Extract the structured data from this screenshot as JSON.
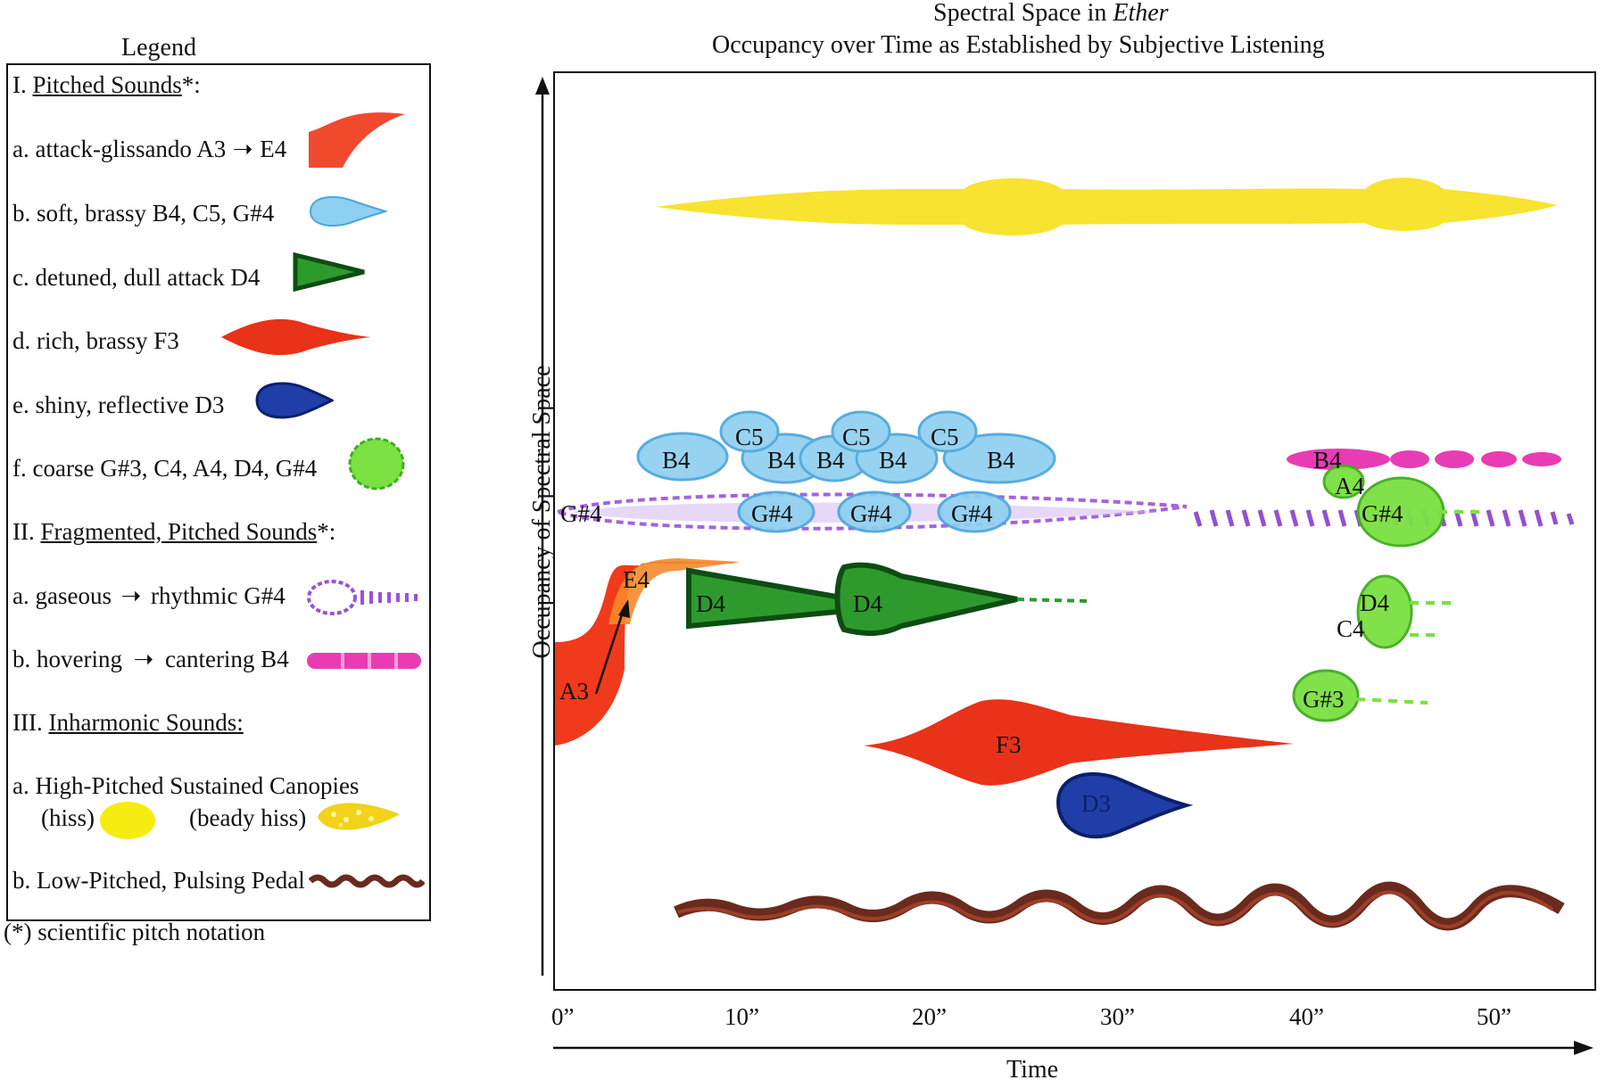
{
  "legend": {
    "heading": "Legend",
    "section1": {
      "prefix": "I. ",
      "title": "Pitched Sounds",
      "suffix": "*:"
    },
    "items1": [
      {
        "label": "a. attack-glissando A3",
        "tail": "E4",
        "color": "#f03a1c"
      },
      {
        "label": "b. soft, brassy B4, C5, G#4",
        "color": "#6cc2ec"
      },
      {
        "label": "c. detuned, dull attack D4",
        "color": "#1f8a24"
      },
      {
        "label": "d. rich, brassy F3",
        "color": "#e8321a"
      },
      {
        "label": "e. shiny, reflective D3",
        "color": "#1f3ea8"
      },
      {
        "label": "f. coarse G#3, C4, A4, D4, G#4",
        "color": "#6fd838"
      }
    ],
    "section2": {
      "prefix": "II. ",
      "title": "Fragmented, Pitched Sounds",
      "suffix": "*:"
    },
    "items2": [
      {
        "pre": "a. gaseous",
        "post": "rhythmic G#4",
        "color": "#9a52d8"
      },
      {
        "pre": "b. hovering",
        "post": "cantering B4",
        "color": "#e83cb4"
      }
    ],
    "section3": {
      "prefix": "III. ",
      "title": "Inharmonic Sounds:"
    },
    "items3": {
      "a_label": "a. High-Pitched Sustained Canopies",
      "hiss": "(hiss)",
      "beady": "(beady hiss)",
      "b_label": "b. Low-Pitched, Pulsing Pedal",
      "hiss_color": "#f5ec10",
      "beady_color": "#f2d21a",
      "pedal_color": "#6a2a1e"
    },
    "footnote": "(*) scientific pitch notation"
  },
  "title": {
    "line1_prefix": "Spectral Space in ",
    "line1_italic": "Ether",
    "line2": "Occupancy over Time as Established by Subjective Listening"
  },
  "axes": {
    "ylabel": "Occupancy of Spectral Space",
    "xlabel": "Time",
    "xticks": [
      "0”",
      "10”",
      "20”",
      "30”",
      "40”",
      "50”"
    ]
  },
  "notes": {
    "A3": "A3",
    "E4": "E4",
    "B4_1": "B4",
    "C5_1": "C5",
    "B4_2": "B4",
    "B4_3": "B4",
    "C5_2": "C5",
    "B4_4": "B4",
    "C5_3": "C5",
    "B4_5": "B4",
    "Gs4_1": "G#4",
    "Gs4_2": "G#4",
    "Gs4_3": "G#4",
    "Gs4_4": "G#4",
    "D4_1": "D4",
    "D4_2": "D4",
    "F3": "F3",
    "D3": "D3",
    "B4_6": "B4",
    "A4": "A4",
    "Gs4_5": "G#4",
    "D4_3": "D4",
    "C4": "C4",
    "Gs3": "G#3"
  }
}
